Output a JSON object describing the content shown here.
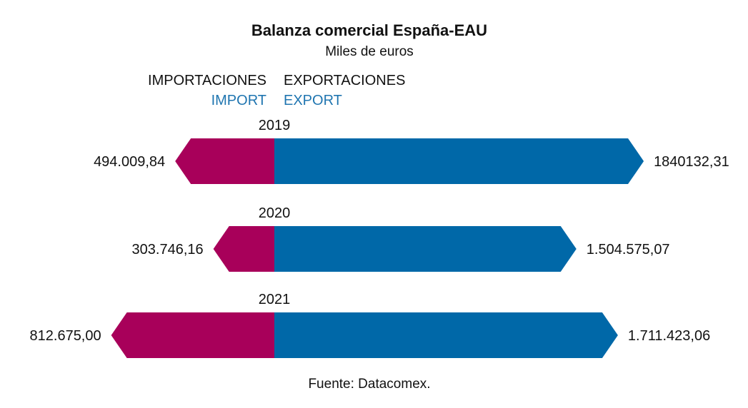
{
  "chart_data": {
    "type": "bar",
    "orientation": "diverging-horizontal",
    "title": "Balanza comercial España-EAU",
    "subtitle": "Miles de euros",
    "legend": {
      "import_es": "IMPORTACIONES",
      "import_en": "IMPORT",
      "export_es": "EXPORTACIONES",
      "export_en": "EXPORT"
    },
    "categories": [
      "2019",
      "2020",
      "2021"
    ],
    "series": [
      {
        "name": "Importaciones",
        "color": "#a8005a",
        "values": [
          494009.84,
          303746.16,
          812675.0
        ],
        "labels": [
          "494.009,84",
          "303.746,16",
          "812.675,00"
        ]
      },
      {
        "name": "Exportaciones",
        "color": "#0068a8",
        "values": [
          1840132.31,
          1504575.07,
          1711423.06
        ],
        "labels": [
          "1840132,31",
          "1.504.575,07",
          "1.711.423,06"
        ]
      }
    ],
    "legend_en_color": "#1f75b0",
    "source": "Fuente: Datacomex."
  }
}
